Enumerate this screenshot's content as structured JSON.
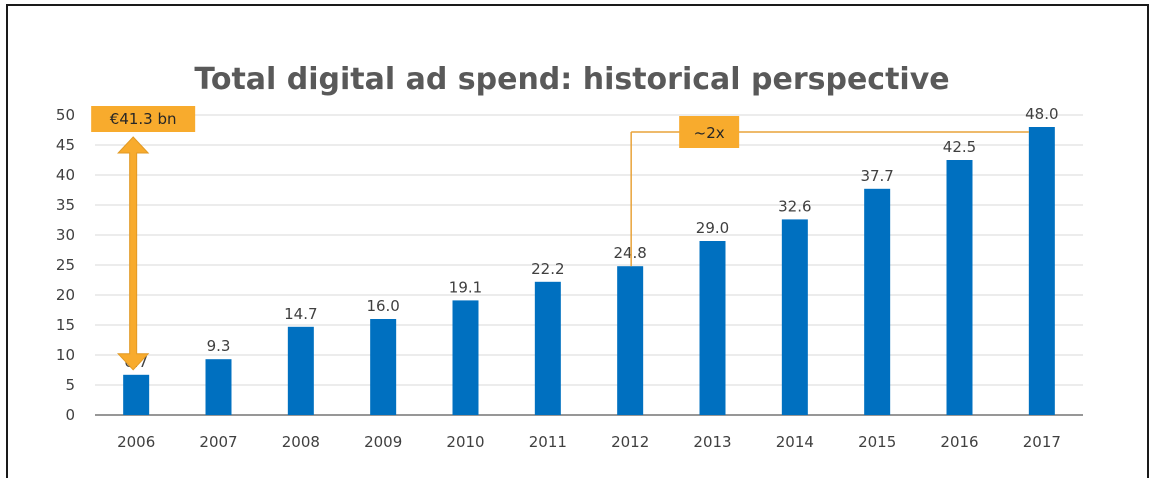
{
  "chart_data": {
    "type": "bar",
    "title": "Total digital ad spend: historical perspective",
    "xlabel": "",
    "ylabel": "",
    "categories": [
      "2006",
      "2007",
      "2008",
      "2009",
      "2010",
      "2011",
      "2012",
      "2013",
      "2014",
      "2015",
      "2016",
      "2017"
    ],
    "values": [
      6.7,
      9.3,
      14.7,
      16.0,
      19.1,
      22.2,
      24.8,
      29.0,
      32.6,
      37.7,
      42.5,
      48.0
    ],
    "value_labels": [
      "6.7",
      "9.3",
      "14.7",
      "16.0",
      "19.1",
      "22.2",
      "24.8",
      "29.0",
      "32.6",
      "37.7",
      "42.5",
      "48.0"
    ],
    "ylim": [
      0,
      50
    ],
    "yticks": [
      "0",
      "5",
      "10",
      "15",
      "20",
      "25",
      "30",
      "35",
      "40",
      "45",
      "50"
    ],
    "grid": true,
    "legend": "none",
    "annotations": [
      {
        "text": "€41.3 bn",
        "kind": "range-arrow",
        "from_category": "2006",
        "from_value": 6.7,
        "to_value": 48.0
      },
      {
        "text": "~2x",
        "kind": "bracket",
        "from_category": "2012",
        "to_category": "2017"
      }
    ],
    "colors": {
      "bar": "#0070c0",
      "callout": "#f8ab2d",
      "callout_line": "#e9a33a",
      "grid": "#d9d9d9",
      "axis": "#595959",
      "title": "#595959"
    }
  }
}
